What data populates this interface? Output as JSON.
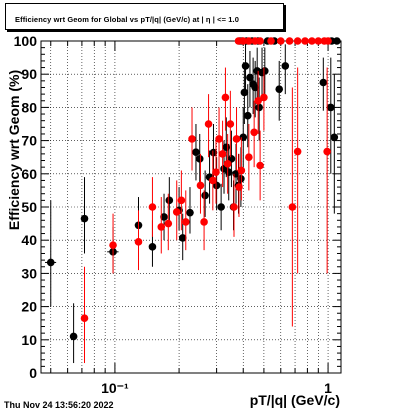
{
  "canvas_title": "Efficiency wrt Geom for Global vs pT/|q| (GeV/c) at | η | <= 1.0",
  "timestamp": "Thu Nov 24 13:56:20 2022",
  "colors": {
    "series_black": "#000000",
    "series_red": "#ff0000",
    "grid": "#000000"
  },
  "chart_data": {
    "type": "scatter",
    "title": "Efficiency wrt Geom for Global vs pT/|q| (GeV/c) at | η | <= 1.0",
    "xlabel": "pT/|q| (GeV/c)",
    "ylabel": "Efficiency wrt Geom (%)",
    "xscale": "log",
    "xlim": [
      0.045,
      1.15
    ],
    "ylim": [
      0,
      100
    ],
    "grid": true,
    "x_tick_labels": [
      "10⁻¹",
      "1"
    ],
    "y_tick_labels": [
      "0",
      "10",
      "20",
      "30",
      "40",
      "50",
      "60",
      "70",
      "80",
      "90",
      "100"
    ],
    "series": [
      {
        "points": [
          {
            "x": 0.05,
            "y": 33.3,
            "ylo": 20,
            "yhi": 52,
            "xerr": 0.003
          },
          {
            "x": 0.064,
            "y": 11,
            "ylo": 3,
            "yhi": 21
          },
          {
            "x": 0.072,
            "y": 46.5,
            "ylo": 36,
            "yhi": 59
          },
          {
            "x": 0.098,
            "y": 36.5,
            "ylo": 30,
            "yhi": 44,
            "xerr": 0.006
          },
          {
            "x": 0.129,
            "y": 44.5,
            "ylo": 36,
            "yhi": 53
          },
          {
            "x": 0.15,
            "y": 38,
            "ylo": 32,
            "yhi": 46
          },
          {
            "x": 0.17,
            "y": 47,
            "ylo": 40,
            "yhi": 54
          },
          {
            "x": 0.18,
            "y": 52,
            "ylo": 45,
            "yhi": 59
          },
          {
            "x": 0.2,
            "y": 49,
            "ylo": 43,
            "yhi": 56
          },
          {
            "x": 0.208,
            "y": 40.7,
            "ylo": 34,
            "yhi": 48
          },
          {
            "x": 0.225,
            "y": 48.3,
            "ylo": 42,
            "yhi": 56
          },
          {
            "x": 0.24,
            "y": 66.5,
            "ylo": 58,
            "yhi": 75
          },
          {
            "x": 0.25,
            "y": 64.5,
            "ylo": 56,
            "yhi": 72
          },
          {
            "x": 0.265,
            "y": 53.5,
            "ylo": 47,
            "yhi": 61
          },
          {
            "x": 0.278,
            "y": 59,
            "ylo": 51,
            "yhi": 67
          },
          {
            "x": 0.29,
            "y": 66.4,
            "ylo": 58,
            "yhi": 75
          },
          {
            "x": 0.3,
            "y": 56.5,
            "ylo": 49,
            "yhi": 65
          },
          {
            "x": 0.315,
            "y": 50,
            "ylo": 43,
            "yhi": 57
          },
          {
            "x": 0.325,
            "y": 61.5,
            "ylo": 54,
            "yhi": 70
          },
          {
            "x": 0.333,
            "y": 68,
            "ylo": 59,
            "yhi": 77
          },
          {
            "x": 0.342,
            "y": 60.5,
            "ylo": 52,
            "yhi": 69
          },
          {
            "x": 0.352,
            "y": 64.5,
            "ylo": 56,
            "yhi": 73
          },
          {
            "x": 0.36,
            "y": 50,
            "ylo": 43,
            "yhi": 58
          },
          {
            "x": 0.37,
            "y": 60,
            "ylo": 51,
            "yhi": 69
          },
          {
            "x": 0.38,
            "y": 56.5,
            "ylo": 48,
            "yhi": 66
          },
          {
            "x": 0.39,
            "y": 58.5,
            "ylo": 50,
            "yhi": 68
          },
          {
            "x": 0.4,
            "y": 71,
            "ylo": 62,
            "yhi": 80
          },
          {
            "x": 0.405,
            "y": 84.5,
            "ylo": 75,
            "yhi": 93
          },
          {
            "x": 0.41,
            "y": 92.5,
            "ylo": 84,
            "yhi": 99
          },
          {
            "x": 0.42,
            "y": 77.5,
            "ylo": 68,
            "yhi": 87
          },
          {
            "x": 0.43,
            "y": 89,
            "ylo": 80,
            "yhi": 97
          },
          {
            "x": 0.445,
            "y": 87,
            "ylo": 78,
            "yhi": 95
          },
          {
            "x": 0.455,
            "y": 86,
            "ylo": 77,
            "yhi": 94
          },
          {
            "x": 0.465,
            "y": 91,
            "ylo": 83,
            "yhi": 98
          },
          {
            "x": 0.475,
            "y": 80,
            "ylo": 70,
            "yhi": 89
          },
          {
            "x": 0.49,
            "y": 90.5,
            "ylo": 82,
            "yhi": 98
          },
          {
            "x": 0.505,
            "y": 91,
            "ylo": 83,
            "yhi": 98
          },
          {
            "x": 0.59,
            "y": 85.5,
            "ylo": 76,
            "yhi": 94
          },
          {
            "x": 0.63,
            "y": 92.5,
            "ylo": 84,
            "yhi": 99
          },
          {
            "x": 0.95,
            "y": 87.5,
            "ylo": 79,
            "yhi": 95
          },
          {
            "x": 1.03,
            "y": 80,
            "ylo": 60,
            "yhi": 95
          },
          {
            "x": 1.07,
            "y": 71,
            "ylo": 48,
            "yhi": 90
          },
          {
            "x": 0.385,
            "y": 100
          },
          {
            "x": 0.395,
            "y": 100
          },
          {
            "x": 0.415,
            "y": 100
          },
          {
            "x": 0.44,
            "y": 100
          },
          {
            "x": 0.47,
            "y": 100
          },
          {
            "x": 0.52,
            "y": 100
          },
          {
            "x": 0.56,
            "y": 100
          },
          {
            "x": 1.04,
            "y": 100
          },
          {
            "x": 1.1,
            "y": 100
          }
        ]
      },
      {
        "points": [
          {
            "x": 0.072,
            "y": 16.5,
            "ylo": 3,
            "yhi": 32
          },
          {
            "x": 0.098,
            "y": 38.5,
            "ylo": 30,
            "yhi": 48
          },
          {
            "x": 0.129,
            "y": 39.5,
            "ylo": 31,
            "yhi": 49
          },
          {
            "x": 0.15,
            "y": 50,
            "ylo": 41,
            "yhi": 59
          },
          {
            "x": 0.165,
            "y": 44,
            "ylo": 36,
            "yhi": 53
          },
          {
            "x": 0.178,
            "y": 45,
            "ylo": 37,
            "yhi": 54
          },
          {
            "x": 0.195,
            "y": 48.5,
            "ylo": 40,
            "yhi": 58
          },
          {
            "x": 0.205,
            "y": 52,
            "ylo": 43,
            "yhi": 61
          },
          {
            "x": 0.215,
            "y": 45.5,
            "ylo": 37,
            "yhi": 55
          },
          {
            "x": 0.23,
            "y": 70.5,
            "ylo": 61,
            "yhi": 80
          },
          {
            "x": 0.252,
            "y": 56.5,
            "ylo": 48,
            "yhi": 66
          },
          {
            "x": 0.262,
            "y": 45.5,
            "ylo": 37,
            "yhi": 55
          },
          {
            "x": 0.275,
            "y": 75,
            "ylo": 65,
            "yhi": 84
          },
          {
            "x": 0.288,
            "y": 58,
            "ylo": 49,
            "yhi": 67
          },
          {
            "x": 0.298,
            "y": 60.5,
            "ylo": 51,
            "yhi": 70
          },
          {
            "x": 0.308,
            "y": 70.5,
            "ylo": 61,
            "yhi": 80
          },
          {
            "x": 0.32,
            "y": 66,
            "ylo": 56,
            "yhi": 76
          },
          {
            "x": 0.33,
            "y": 83,
            "ylo": 73,
            "yhi": 92
          },
          {
            "x": 0.338,
            "y": 63,
            "ylo": 54,
            "yhi": 72
          },
          {
            "x": 0.348,
            "y": 75,
            "ylo": 65,
            "yhi": 85
          },
          {
            "x": 0.362,
            "y": 50,
            "ylo": 41,
            "yhi": 60
          },
          {
            "x": 0.372,
            "y": 70.5,
            "ylo": 61,
            "yhi": 80
          },
          {
            "x": 0.382,
            "y": 56,
            "ylo": 47,
            "yhi": 66
          },
          {
            "x": 0.392,
            "y": 61,
            "ylo": 52,
            "yhi": 71
          },
          {
            "x": 0.425,
            "y": 65,
            "ylo": 55,
            "yhi": 75
          },
          {
            "x": 0.45,
            "y": 72.5,
            "ylo": 62,
            "yhi": 82
          },
          {
            "x": 0.47,
            "y": 82,
            "ylo": 72,
            "yhi": 91
          },
          {
            "x": 0.48,
            "y": 62.5,
            "ylo": 52,
            "yhi": 73
          },
          {
            "x": 0.5,
            "y": 83,
            "ylo": 73,
            "yhi": 92
          },
          {
            "x": 0.68,
            "y": 50,
            "ylo": 14,
            "yhi": 86
          },
          {
            "x": 0.72,
            "y": 66.7,
            "ylo": 30,
            "yhi": 92
          },
          {
            "x": 0.99,
            "y": 66.7,
            "ylo": 30,
            "yhi": 92
          },
          {
            "x": 0.38,
            "y": 100
          },
          {
            "x": 0.4,
            "y": 100
          },
          {
            "x": 0.425,
            "y": 100
          },
          {
            "x": 0.455,
            "y": 100
          },
          {
            "x": 0.48,
            "y": 100
          },
          {
            "x": 0.54,
            "y": 100
          },
          {
            "x": 0.6,
            "y": 100
          },
          {
            "x": 0.66,
            "y": 100
          },
          {
            "x": 0.72,
            "y": 100
          },
          {
            "x": 0.78,
            "y": 100
          },
          {
            "x": 0.84,
            "y": 100
          },
          {
            "x": 0.9,
            "y": 100
          },
          {
            "x": 0.96,
            "y": 100
          },
          {
            "x": 1.0,
            "y": 100
          }
        ]
      }
    ]
  }
}
